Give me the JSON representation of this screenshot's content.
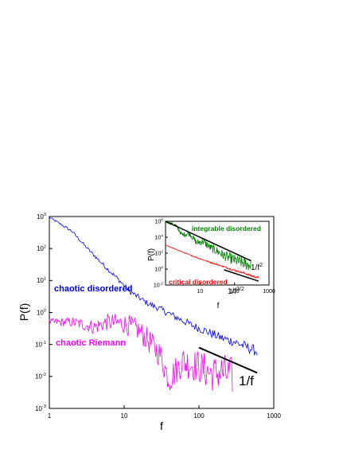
{
  "chart_data": [
    {
      "type": "line",
      "xlabel": "f",
      "ylabel": "P(f)",
      "xscale": "log",
      "yscale": "log",
      "xlim": [
        1,
        1000
      ],
      "ylim": [
        0.001,
        1000
      ],
      "x_ticks": [
        {
          "value": 1,
          "label": "1"
        },
        {
          "value": 10,
          "label": "10"
        },
        {
          "value": 100,
          "label": "100"
        },
        {
          "value": 1000,
          "label": "1000"
        }
      ],
      "y_ticks": [
        {
          "value": 0.001,
          "base": "10",
          "exp": "-3"
        },
        {
          "value": 0.01,
          "base": "10",
          "exp": "-2"
        },
        {
          "value": 0.1,
          "base": "10",
          "exp": "-1"
        },
        {
          "value": 1,
          "base": "10",
          "exp": "0"
        },
        {
          "value": 10,
          "base": "10",
          "exp": "1"
        },
        {
          "value": 100,
          "base": "10",
          "exp": "2"
        },
        {
          "value": 1000,
          "base": "10",
          "exp": "3"
        }
      ],
      "grid": false,
      "series": [
        {
          "name": "chaotic disordered",
          "color": "#0000ff",
          "x": [
            1,
            2,
            3,
            5,
            8,
            12,
            20,
            30,
            50,
            80,
            120,
            200,
            300,
            450,
            600
          ],
          "y": [
            950,
            350,
            120,
            35,
            12,
            4.5,
            2.0,
            1.3,
            0.7,
            0.4,
            0.27,
            0.16,
            0.12,
            0.08,
            0.06
          ]
        },
        {
          "name": "chaotic Riemann",
          "color": "#ff00ff",
          "x": [
            1,
            2,
            4,
            6,
            10,
            15,
            20,
            30,
            40,
            60,
            100,
            150,
            200,
            280
          ],
          "y": [
            0.5,
            0.5,
            0.35,
            0.5,
            0.45,
            0.3,
            0.15,
            0.05,
            0.008,
            0.03,
            0.02,
            0.012,
            0.014,
            0.01
          ]
        },
        {
          "name": "1/f",
          "color": "#000000",
          "x": [
            100,
            600
          ],
          "y": [
            0.08,
            0.013
          ]
        }
      ],
      "annotations": [
        "chaotic disordered",
        "chaotic Riemann",
        "1/f"
      ]
    },
    {
      "type": "line",
      "inset": true,
      "xlabel": "f",
      "ylabel": "P(f)",
      "xscale": "log",
      "yscale": "log",
      "xlim": [
        1,
        1000
      ],
      "ylim": [
        0.01,
        1000000
      ],
      "x_ticks": [
        {
          "value": 10,
          "label": "10"
        },
        {
          "value": 100,
          "label": "100"
        },
        {
          "value": 1000,
          "label": "1000"
        }
      ],
      "y_ticks": [
        {
          "value": 0.01,
          "base": "10",
          "exp": "-2"
        },
        {
          "value": 1,
          "base": "10",
          "exp": "0"
        },
        {
          "value": 100,
          "base": "10",
          "exp": "2"
        },
        {
          "value": 10000,
          "base": "10",
          "exp": "4"
        },
        {
          "value": 1000000,
          "base": "10",
          "exp": "6"
        }
      ],
      "series": [
        {
          "name": "integrable disordered",
          "color": "#008000",
          "x": [
            1,
            2,
            3,
            5,
            8,
            12,
            20,
            30,
            50,
            80,
            120,
            200,
            300
          ],
          "y": [
            1000000,
            300000,
            20000,
            30000,
            2000,
            3000,
            500,
            200,
            50,
            20,
            10,
            5,
            3
          ]
        },
        {
          "name": "critical disordered",
          "color": "#ff0000",
          "x": [
            1,
            2,
            3,
            5,
            10,
            20,
            50,
            100,
            200,
            300,
            500
          ],
          "y": [
            1000,
            300,
            150,
            60,
            20,
            7,
            2,
            0.7,
            0.3,
            0.15,
            0.08
          ]
        },
        {
          "name": "1/f^2",
          "color": "#000000",
          "x": [
            1,
            300
          ],
          "y": [
            1000000,
            11
          ]
        },
        {
          "name": "1/f^{3/2}",
          "color": "#000000",
          "x": [
            50,
            500
          ],
          "y": [
            0.8,
            0.03
          ]
        }
      ],
      "annotations": [
        "integrable disordered",
        "critical disordered",
        "1/f",
        "2",
        "1/f",
        "3/2"
      ]
    }
  ]
}
